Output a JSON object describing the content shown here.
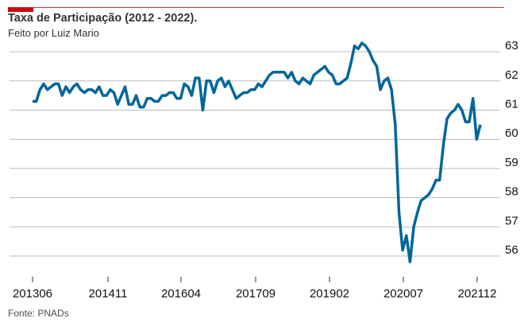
{
  "header": {
    "title": "Taxa de Participação (2012 - 2022).",
    "subtitle": "Feito por Luiz Mario",
    "accent_color": "#cc0a0a",
    "rule_color": "#cc3333"
  },
  "footer": {
    "source": "Fonte: PNADs"
  },
  "chart_data": {
    "type": "line",
    "title": "Taxa de Participação (2012 - 2022).",
    "subtitle": "Feito por Luiz Mario",
    "xlabel": "",
    "ylabel": "",
    "x_tick_labels": [
      "201306",
      "201411",
      "201604",
      "201709",
      "201902",
      "202007",
      "202112"
    ],
    "y_tick_labels": [
      56,
      57,
      58,
      59,
      60,
      61,
      62,
      63
    ],
    "ylim": [
      55.4,
      63.6
    ],
    "y_axis_side": "right",
    "grid": "horizontal",
    "legend": "none",
    "line_color": "#006699",
    "grid_color": "#bbbbbb",
    "series": [
      {
        "values": [
          61.3,
          61.3,
          61.7,
          61.9,
          61.7,
          61.8,
          61.9,
          61.9,
          61.5,
          61.8,
          61.6,
          61.8,
          61.9,
          61.7,
          61.6,
          61.7,
          61.7,
          61.6,
          61.8,
          61.5,
          61.5,
          61.7,
          61.6,
          61.2,
          61.5,
          61.8,
          61.2,
          61.2,
          61.5,
          61.1,
          61.1,
          61.4,
          61.4,
          61.3,
          61.3,
          61.5,
          61.5,
          61.6,
          61.6,
          61.4,
          61.4,
          61.9,
          61.8,
          61.5,
          62.1,
          62.1,
          61.0,
          62.0,
          62.0,
          61.6,
          62.0,
          62.1,
          61.8,
          62.0,
          61.7,
          61.4,
          61.5,
          61.6,
          61.6,
          61.7,
          61.7,
          61.9,
          61.8,
          62.0,
          62.2,
          62.3,
          62.3,
          62.3,
          62.3,
          62.1,
          62.3,
          62.0,
          61.9,
          62.1,
          62.0,
          61.9,
          62.2,
          62.3,
          62.4,
          62.5,
          62.3,
          62.2,
          61.9,
          61.9,
          62.0,
          62.1,
          62.6,
          63.2,
          63.1,
          63.3,
          63.2,
          63.0,
          62.7,
          62.5,
          61.7,
          62.0,
          62.1,
          61.7,
          60.5,
          57.5,
          56.2,
          56.7,
          55.8,
          57.0,
          57.5,
          57.9,
          58.0,
          58.1,
          58.3,
          58.6,
          58.6,
          59.8,
          60.7,
          60.9,
          61.0,
          61.2,
          61.0,
          60.6,
          60.6,
          61.4,
          60.0,
          60.5
        ]
      }
    ]
  }
}
